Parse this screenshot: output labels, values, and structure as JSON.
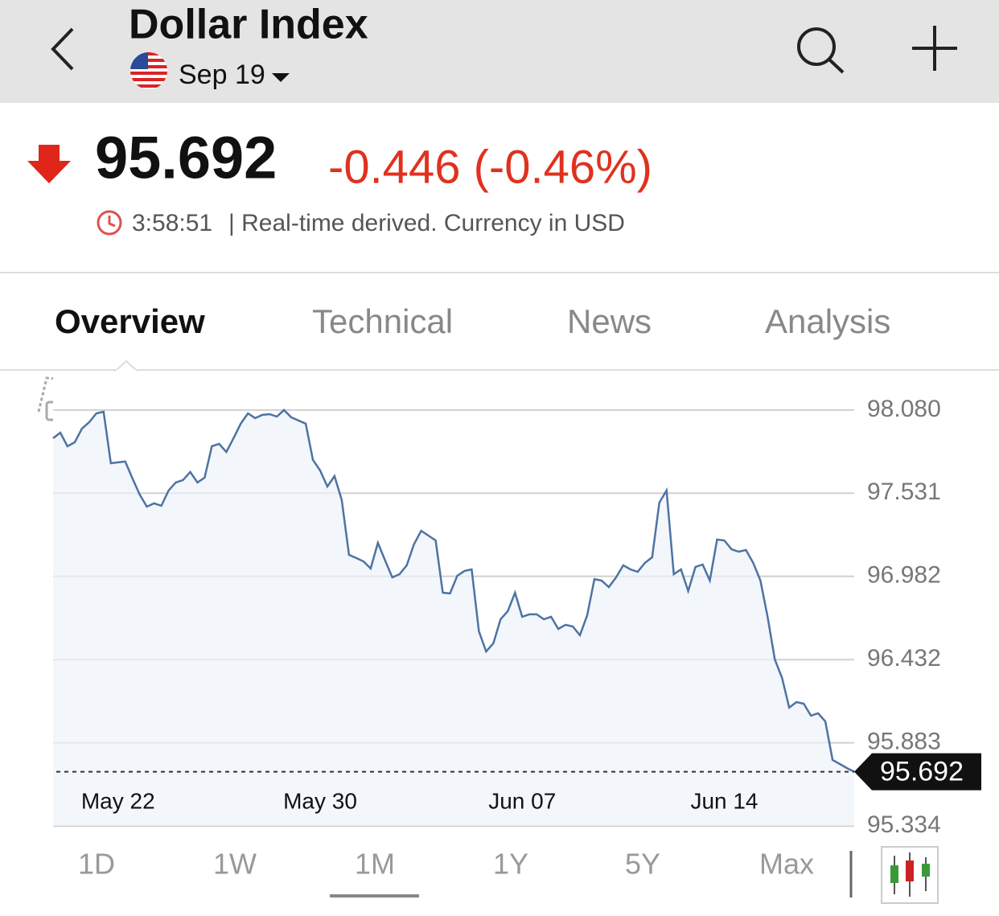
{
  "header": {
    "title": "Dollar Index",
    "contract": "Sep 19"
  },
  "quote": {
    "price": "95.692",
    "change": "-0.446 (-0.46%)",
    "time": "3:58:51",
    "note": "| Real-time derived. Currency in USD"
  },
  "tabs": [
    "Overview",
    "Technical",
    "News",
    "Analysis"
  ],
  "ranges": [
    "1D",
    "1W",
    "1M",
    "1Y",
    "5Y",
    "Max"
  ],
  "chart_data": {
    "type": "line",
    "categories": [
      null,
      null,
      null,
      null,
      null,
      null,
      null,
      null,
      null,
      "May 22",
      null,
      null,
      null,
      null,
      null,
      null,
      null,
      null,
      null,
      null,
      null,
      null,
      null,
      null,
      null,
      null,
      null,
      null,
      null,
      null,
      null,
      null,
      null,
      null,
      null,
      null,
      null,
      "May 30",
      null,
      null,
      null,
      null,
      null,
      null,
      null,
      null,
      null,
      null,
      null,
      null,
      null,
      null,
      null,
      null,
      null,
      null,
      null,
      null,
      null,
      null,
      null,
      null,
      null,
      null,
      null,
      "Jun 07",
      null,
      null,
      null,
      null,
      null,
      null,
      null,
      null,
      null,
      null,
      null,
      null,
      null,
      null,
      null,
      null,
      null,
      null,
      null,
      null,
      null,
      null,
      null,
      null,
      null,
      null,
      null,
      "Jun 14",
      null,
      null,
      null,
      null,
      null,
      null,
      null,
      null,
      null,
      null,
      null,
      null,
      null,
      null,
      null,
      null,
      null,
      null
    ],
    "series": [
      {
        "color": "#4e73a3",
        "values": [
          97.894,
          97.931,
          97.841,
          97.867,
          97.958,
          98.0,
          98.058,
          98.069,
          97.729,
          97.735,
          97.74,
          97.628,
          97.522,
          97.442,
          97.464,
          97.448,
          97.549,
          97.602,
          97.618,
          97.671,
          97.602,
          97.634,
          97.841,
          97.857,
          97.804,
          97.894,
          97.99,
          98.058,
          98.027,
          98.048,
          98.053,
          98.037,
          98.08,
          98.032,
          98.011,
          97.99,
          97.751,
          97.681,
          97.575,
          97.644,
          97.485,
          97.124,
          97.103,
          97.081,
          97.034,
          97.203,
          97.087,
          96.975,
          96.996,
          97.055,
          97.193,
          97.283,
          97.251,
          97.219,
          96.874,
          96.869,
          96.986,
          97.018,
          97.028,
          96.619,
          96.486,
          96.54,
          96.699,
          96.752,
          96.874,
          96.715,
          96.731,
          96.731,
          96.699,
          96.715,
          96.635,
          96.662,
          96.651,
          96.593,
          96.725,
          96.964,
          96.954,
          96.911,
          96.975,
          97.055,
          97.028,
          97.012,
          97.071,
          97.108,
          97.469,
          97.549,
          96.996,
          97.028,
          96.885,
          97.044,
          97.06,
          96.954,
          97.225,
          97.219,
          97.161,
          97.145,
          97.156,
          97.071,
          96.954,
          96.715,
          96.433,
          96.311,
          96.115,
          96.152,
          96.141,
          96.062,
          96.078,
          96.024,
          95.77,
          95.743,
          95.716,
          95.692
        ]
      }
    ],
    "ylim": [
      95.334,
      98.32
    ],
    "yticks": [
      {
        "value": 98.08,
        "label": "98.080"
      },
      97.531,
      96.982,
      96.432,
      95.883,
      95.334
    ],
    "grid": true,
    "last_value": 95.692
  }
}
